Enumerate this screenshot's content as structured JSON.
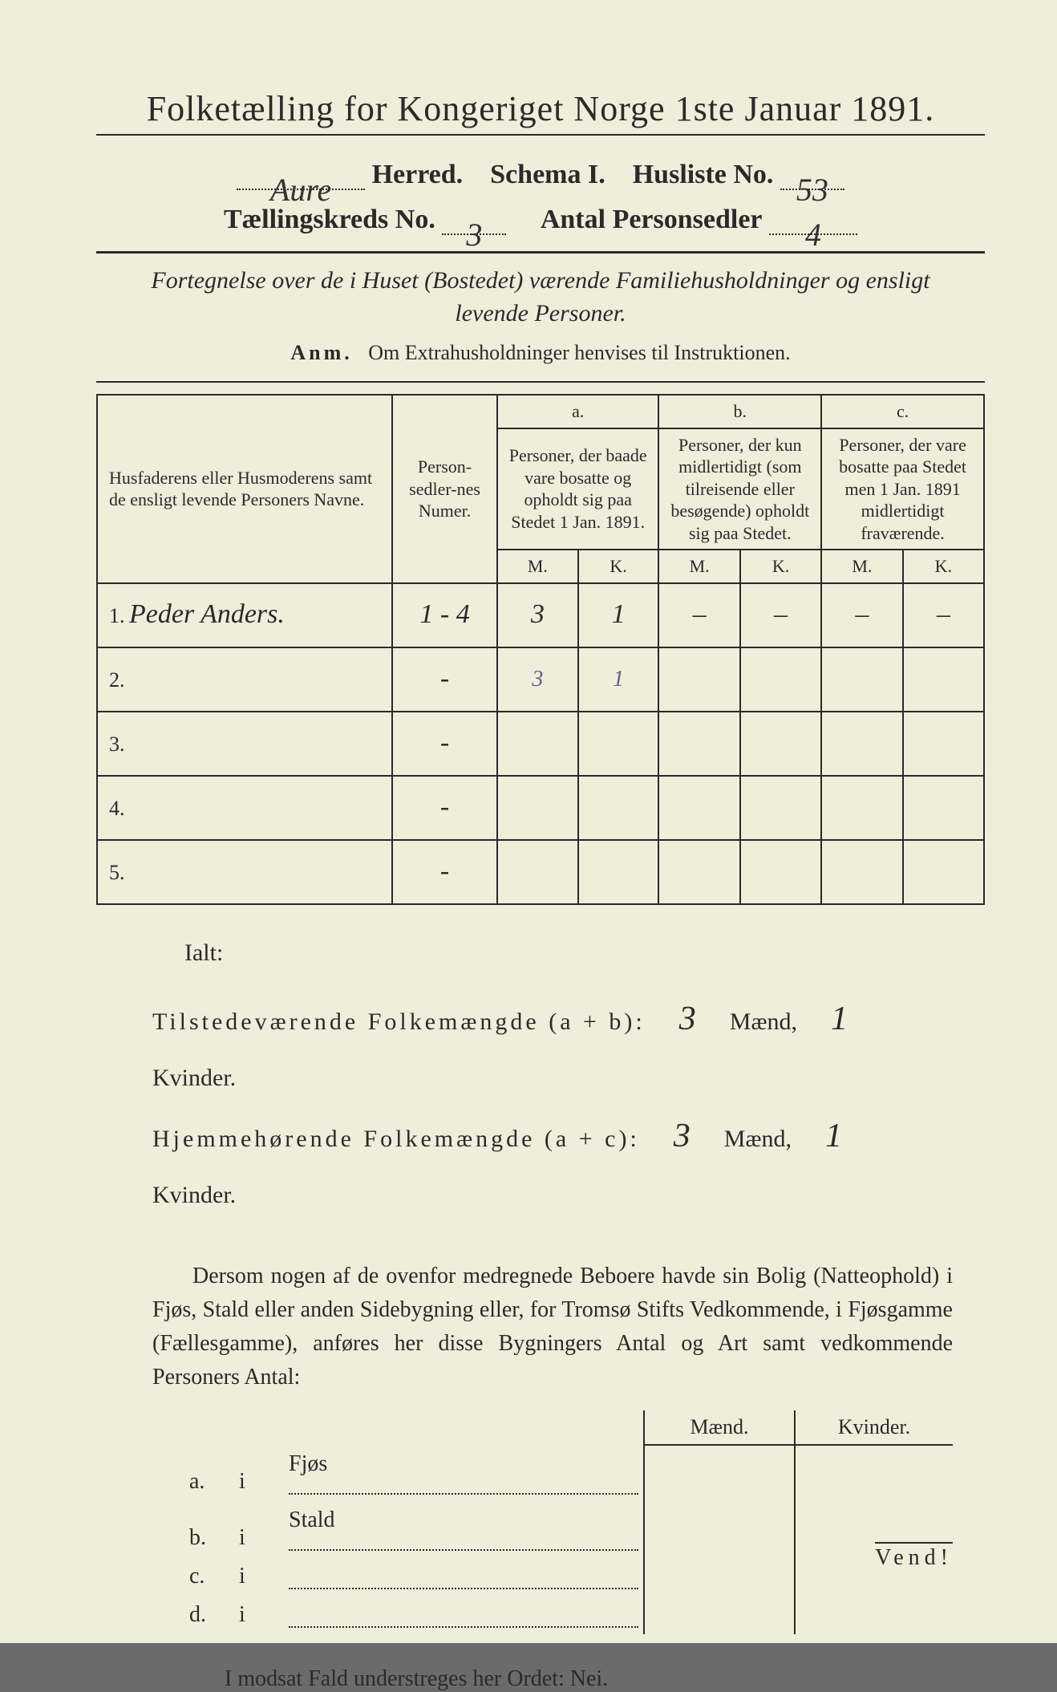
{
  "title": "Folketælling for Kongeriget Norge 1ste Januar 1891.",
  "header": {
    "herred_value": "Aure",
    "herred_label": "Herred.",
    "schema_label": "Schema I.",
    "husliste_label": "Husliste No.",
    "husliste_value": "53",
    "kreds_label": "Tællingskreds No.",
    "kreds_value": "3",
    "sedler_label": "Antal Personsedler",
    "sedler_value": "4"
  },
  "subtitle": "Fortegnelse over de i Huset (Bostedet) værende Familiehusholdninger og ensligt levende Personer.",
  "anm_label": "Anm.",
  "anm_text": "Om Extrahusholdninger henvises til Instruktionen.",
  "columns": {
    "names": "Husfaderens eller Husmoderens samt de ensligt levende Personers Navne.",
    "numer": "Person-sedler-nes Numer.",
    "a_label": "a.",
    "a_text": "Personer, der baade vare bosatte og opholdt sig paa Stedet 1 Jan. 1891.",
    "b_label": "b.",
    "b_text": "Personer, der kun midlertidigt (som tilreisende eller besøgende) opholdt sig paa Stedet.",
    "c_label": "c.",
    "c_text": "Personer, der vare bosatte paa Stedet men 1 Jan. 1891 midlertidigt fraværende.",
    "m": "M.",
    "k": "K."
  },
  "rows": [
    {
      "n": "1.",
      "name": "Peder Anders.",
      "numer": "1 - 4",
      "a_m": "3",
      "a_k": "1",
      "b_m": "–",
      "b_k": "–",
      "c_m": "–",
      "c_k": "–"
    },
    {
      "n": "2.",
      "name": "",
      "numer": "-",
      "a_m": "3",
      "a_k": "1",
      "b_m": "",
      "b_k": "",
      "c_m": "",
      "c_k": ""
    },
    {
      "n": "3.",
      "name": "",
      "numer": "-",
      "a_m": "",
      "a_k": "",
      "b_m": "",
      "b_k": "",
      "c_m": "",
      "c_k": ""
    },
    {
      "n": "4.",
      "name": "",
      "numer": "-",
      "a_m": "",
      "a_k": "",
      "b_m": "",
      "b_k": "",
      "c_m": "",
      "c_k": ""
    },
    {
      "n": "5.",
      "name": "",
      "numer": "-",
      "a_m": "",
      "a_k": "",
      "b_m": "",
      "b_k": "",
      "c_m": "",
      "c_k": ""
    }
  ],
  "totals": {
    "ialt": "Ialt:",
    "line1_label": "Tilstedeværende Folkemængde (a + b):",
    "line2_label": "Hjemmehørende Folkemængde (a + c):",
    "maend": "Mænd,",
    "kvinder": "Kvinder.",
    "l1_m": "3",
    "l1_k": "1",
    "l2_m": "3",
    "l2_k": "1"
  },
  "para": "Dersom nogen af de ovenfor medregnede Beboere havde sin Bolig (Natteophold) i Fjøs, Stald eller anden Sidebygning eller, for Tromsø Stifts Vedkommende, i Fjøsgamme (Fællesgamme), anføres her disse Bygningers Antal og Art samt vedkommende Personers Antal:",
  "sidebuild": {
    "maend": "Mænd.",
    "kvinder": "Kvinder.",
    "rows": [
      {
        "key": "a.",
        "i": "i",
        "label": "Fjøs"
      },
      {
        "key": "b.",
        "i": "i",
        "label": "Stald"
      },
      {
        "key": "c.",
        "i": "i",
        "label": ""
      },
      {
        "key": "d.",
        "i": "i",
        "label": ""
      }
    ]
  },
  "nei": "I modsat Fald understreges her Ordet: Nei.",
  "vend": "Vend!",
  "colors": {
    "paper": "#efeedb",
    "ink": "#2a2a2a",
    "background": "#6b6b6b"
  }
}
